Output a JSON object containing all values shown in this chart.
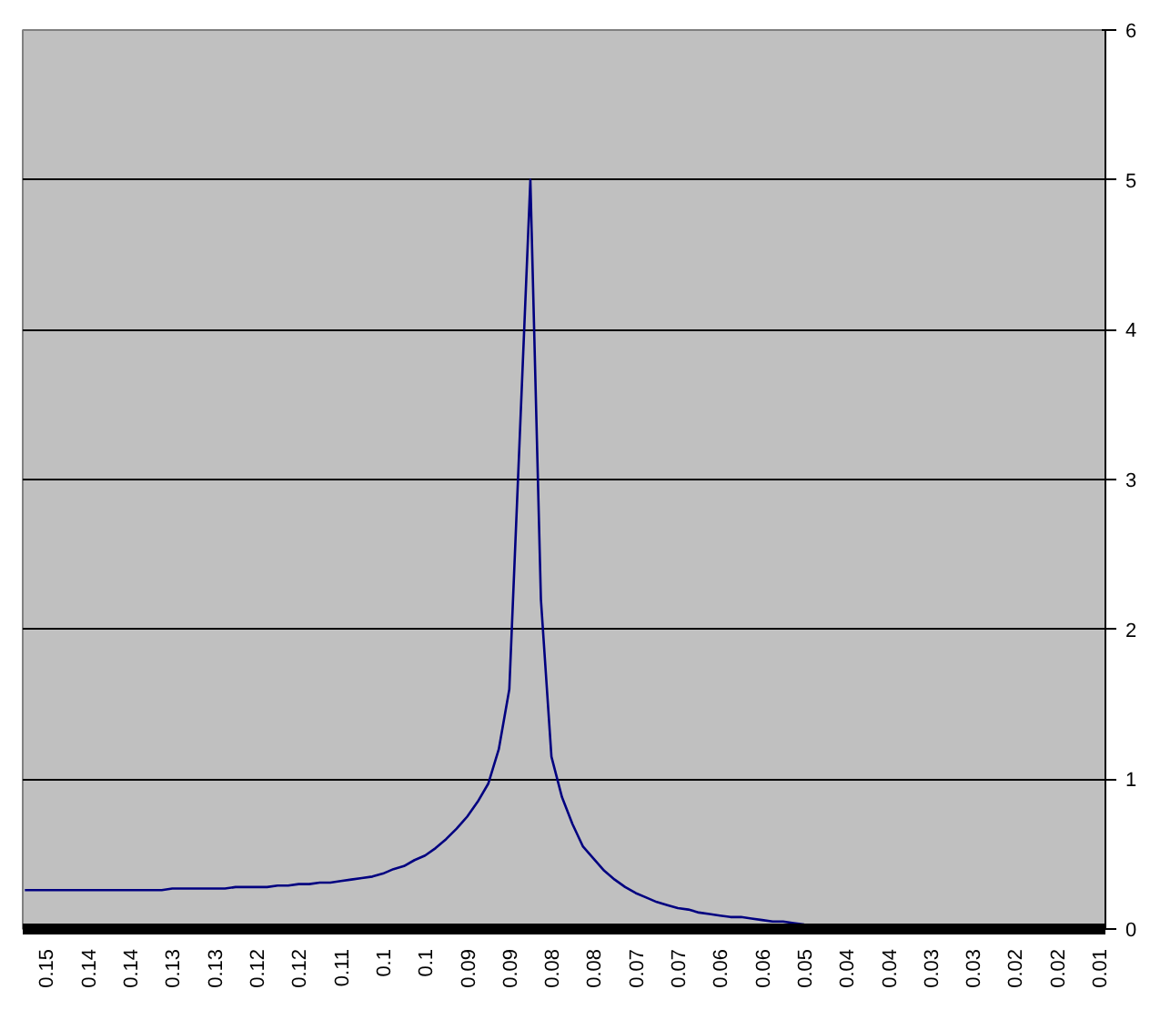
{
  "chart_data": {
    "type": "line",
    "categories": [
      null,
      null,
      "0.15",
      null,
      null,
      null,
      "0.14",
      null,
      null,
      null,
      "0.14",
      null,
      null,
      null,
      "0.13",
      null,
      null,
      null,
      "0.13",
      null,
      null,
      null,
      "0.12",
      null,
      null,
      null,
      "0.12",
      null,
      null,
      null,
      "0.11",
      null,
      null,
      null,
      "0.1",
      null,
      null,
      null,
      "0.1",
      null,
      null,
      null,
      "0.09",
      null,
      null,
      null,
      "0.09",
      null,
      null,
      null,
      "0.08",
      null,
      null,
      null,
      "0.08",
      null,
      null,
      null,
      "0.07",
      null,
      null,
      null,
      "0.07",
      null,
      null,
      null,
      "0.06",
      null,
      null,
      null,
      "0.06",
      null,
      null,
      null,
      "0.05",
      null,
      null,
      null,
      "0.04",
      null,
      null,
      null,
      "0.04",
      null,
      null,
      null,
      "0.03",
      null,
      null,
      null,
      "0.03",
      null,
      null,
      null,
      "0.02",
      null,
      null,
      null,
      "0.02",
      null,
      null,
      null,
      "0.01"
    ],
    "series": [
      {
        "color": "#000080",
        "values": [
          0.26,
          0.26,
          0.26,
          0.26,
          0.26,
          0.26,
          0.26,
          0.26,
          0.26,
          0.26,
          0.26,
          0.26,
          0.26,
          0.26,
          0.27,
          0.27,
          0.27,
          0.27,
          0.27,
          0.27,
          0.28,
          0.28,
          0.28,
          0.28,
          0.29,
          0.29,
          0.3,
          0.3,
          0.31,
          0.31,
          0.32,
          0.33,
          0.34,
          0.35,
          0.37,
          0.4,
          0.42,
          0.46,
          0.49,
          0.54,
          0.6,
          0.67,
          0.75,
          0.85,
          0.97,
          1.2,
          1.6,
          3.3,
          5.0,
          2.2,
          1.15,
          0.88,
          0.7,
          0.55,
          0.47,
          0.39,
          0.33,
          0.28,
          0.24,
          0.21,
          0.18,
          0.16,
          0.14,
          0.13,
          0.11,
          0.1,
          0.09,
          0.08,
          0.08,
          0.07,
          0.06,
          0.05,
          0.05,
          0.04,
          0.03,
          null,
          null,
          null,
          null,
          null,
          null,
          null,
          null,
          null,
          null,
          null,
          null,
          null,
          null,
          null,
          null,
          null,
          null,
          null,
          null,
          null,
          null,
          null,
          null,
          null,
          null,
          null,
          null
        ]
      }
    ],
    "ylim": [
      0,
      6
    ],
    "yticks": [
      0,
      1,
      2,
      3,
      4,
      5,
      6
    ],
    "grid": "y",
    "marker": "none",
    "line_style": "solid"
  }
}
